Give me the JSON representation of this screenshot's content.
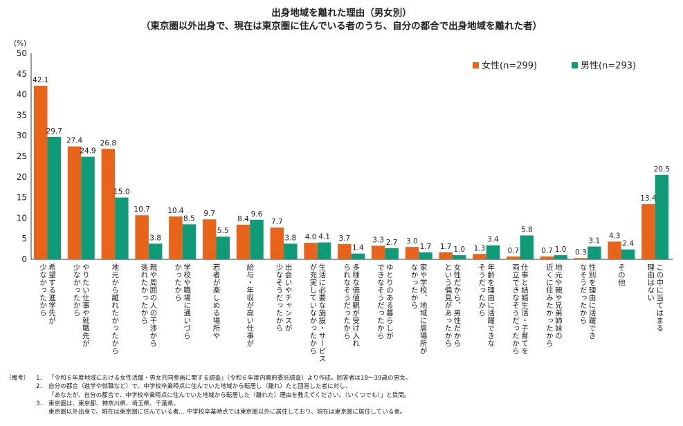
{
  "chart_data": {
    "type": "bar",
    "title": "出身地域を離れた理由（男女別）",
    "subtitle": "（東京圏以外出身で、現在は東京圏に住んでいる者のうち、自分の都合で出身地域を離れた者）",
    "ylabel": "(%)",
    "ylim": [
      0,
      50
    ],
    "yticks": [
      0,
      5,
      10,
      15,
      20,
      25,
      30,
      35,
      40,
      45,
      50
    ],
    "grid": false,
    "legend_position": "top-right",
    "categories": [
      [
        "希望する進学先が",
        "少なかったから"
      ],
      [
        "やりたい仕事や就職先が",
        "少なかったから"
      ],
      [
        "地元から離れたかったから"
      ],
      [
        "親や周囲の人の干渉から",
        "逃れたかったから"
      ],
      [
        "学校や職場に通いづら",
        "かったから"
      ],
      [
        "若者が楽しめる場所や"
      ],
      [
        "給与・年収が高い仕事が"
      ],
      [
        "出会いやチャンスが",
        "少なそうだったから"
      ],
      [
        "生活に必要な施設・サービス",
        "が充実していなかったから"
      ],
      [
        "多様な価値観が受け入れ",
        "られなそうだったから"
      ],
      [
        "ゆとりのある暮らしが",
        "できなそうだったから"
      ],
      [
        "家や学校、地域に居場所が",
        "なかったから"
      ],
      [
        "女性だから、男性だから",
        "という偏見があったから"
      ],
      [
        "年齢を理由に活躍できな",
        "そうだったから"
      ],
      [
        "仕事と結婚生活・子育てを",
        "両立できなそうだったから"
      ],
      [
        "地元や親や兄弟姉妹の",
        "近くに住みたかったから"
      ],
      [
        "性別を理由に活躍でき",
        "なそうだったから"
      ],
      [
        "その他"
      ],
      [
        "この中に当てはまる",
        "理由はない"
      ]
    ],
    "series": [
      {
        "name": "女性(n=299)",
        "color": "#e8641b",
        "values": [
          42.1,
          27.4,
          26.8,
          10.7,
          10.4,
          9.7,
          8.4,
          7.7,
          4.0,
          3.7,
          3.3,
          3.0,
          1.7,
          1.3,
          0.7,
          0.7,
          0.3,
          4.3,
          13.4
        ],
        "labels": [
          "42.1",
          "27.4",
          "26.8",
          "10.7",
          "10.4",
          "9.7",
          "8.4",
          "7.7",
          "4.0",
          "3.7",
          "3.3",
          "3.0",
          "1.7",
          "1.3",
          "0.7",
          "0.7",
          "0.3",
          "4.3",
          "13.4"
        ]
      },
      {
        "name": "男性(n=293)",
        "color": "#0f9b78",
        "values": [
          29.7,
          24.9,
          15.0,
          3.8,
          8.5,
          5.5,
          9.6,
          3.8,
          4.1,
          1.4,
          2.7,
          1.7,
          1.0,
          3.4,
          5.8,
          1.0,
          3.1,
          2.4,
          20.5
        ],
        "labels": [
          "29.7",
          "24.9",
          "15.0",
          "3.8",
          "8.5",
          "5.5",
          "9.6",
          "3.8",
          "4.1",
          "1.4",
          "2.7",
          "1.7",
          "1.0",
          "3.4",
          "5.8",
          "1.0",
          "3.1",
          "2.4",
          "20.5"
        ]
      }
    ]
  },
  "notes": [
    {
      "key": "（備考）",
      "num": "1．",
      "text": "「令和６年度地域における女性活躍・男女共同参画に関する調査」（令和６年度内閣府委託調査）より作成。回答者は18～39歳の男女。"
    },
    {
      "key": "",
      "num": "2．",
      "text": "自分の都合（進学や就職など）で、中学校卒業時点に住んでいた地域から転居し（離れ）たと回答した者に対し、"
    },
    {
      "key": "",
      "num": "",
      "text": "「あなたが、自分の都合で、中学校卒業時点に住んでいた地域から転居した（離れた）理由を教えてください。（いくつでも）」と質問。"
    },
    {
      "key": "",
      "num": "3．",
      "text": "東京圏は、東京都、神奈川県、埼玉県、千葉県。"
    },
    {
      "key": "",
      "num": "",
      "text": "東京圏以外出身で、現在は東京圏に住んでいる者… 中学校卒業時点では東京圏以外に居住しており、現在は東京圏に居住している者。"
    }
  ]
}
